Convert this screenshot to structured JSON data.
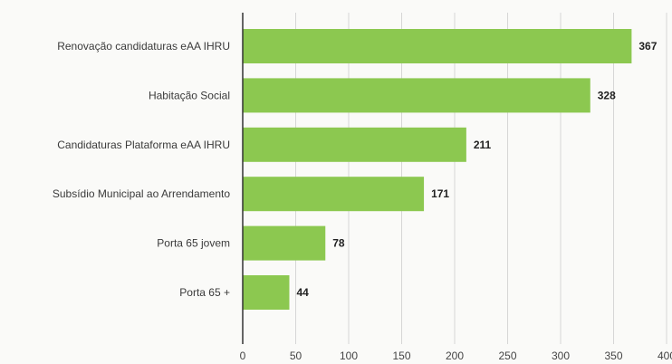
{
  "chart_data": {
    "type": "bar",
    "orientation": "horizontal",
    "categories": [
      "Renovação candidaturas eAA IHRU",
      "Habitação Social",
      "Candidaturas Plataforma eAA IHRU",
      "Subsídio Municipal ao Arrendamento",
      "Porta 65 jovem",
      "Porta 65 +"
    ],
    "values": [
      367,
      328,
      211,
      171,
      78,
      44
    ],
    "value_labels": [
      "367",
      "328",
      "211",
      "171",
      "78",
      "44"
    ],
    "xlim": [
      0,
      400
    ],
    "x_ticks": [
      0,
      50,
      100,
      150,
      200,
      250,
      300,
      350,
      400
    ],
    "x_tick_labels": [
      "0",
      "50",
      "100",
      "150",
      "200",
      "250",
      "300",
      "350",
      "400"
    ],
    "grid": "vertical",
    "bar_color": "#8cc850",
    "grid_color": "#d6d6d6",
    "axis_color": "#333333"
  }
}
